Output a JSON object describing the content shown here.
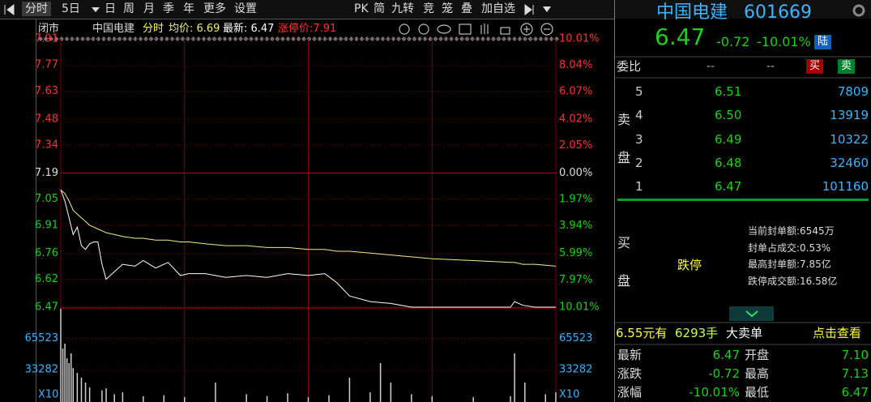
{
  "toolbar": {
    "left": [
      "分时",
      "5日",
      "日",
      "周",
      "月",
      "季",
      "年",
      "更多",
      "设置"
    ],
    "right": [
      "PK",
      "简",
      "九转",
      "竞",
      "笼",
      "叠",
      "加自选"
    ]
  },
  "chart_data": {
    "type": "line",
    "status": "闭市",
    "name": "中国电建",
    "mode": "分时",
    "avg_label": "均价: 6.69",
    "last_label": "最新: 6.47",
    "limit_label": "涨停价:7.91",
    "x": [
      0,
      2,
      4,
      6,
      8,
      10,
      12,
      14,
      16,
      18,
      20,
      22,
      26,
      30,
      36,
      40,
      46,
      52,
      58,
      62,
      70,
      80,
      90,
      100,
      110,
      120,
      128,
      134,
      140,
      150,
      160,
      170,
      180,
      200,
      218,
      220,
      224,
      230,
      240
    ],
    "series": [
      {
        "color": "#ffffff",
        "values": [
          7.1,
          7.04,
          6.95,
          6.86,
          6.9,
          6.8,
          6.78,
          6.81,
          6.82,
          6.82,
          6.7,
          6.62,
          6.66,
          6.7,
          6.69,
          6.72,
          6.68,
          6.71,
          6.64,
          6.65,
          6.65,
          6.63,
          6.64,
          6.63,
          6.65,
          6.64,
          6.65,
          6.6,
          6.53,
          6.5,
          6.49,
          6.47,
          6.47,
          6.47,
          6.47,
          6.5,
          6.48,
          6.47,
          6.47
        ]
      },
      {
        "color": "#f0f080",
        "values": [
          7.1,
          7.08,
          7.04,
          6.99,
          6.97,
          6.95,
          6.93,
          6.91,
          6.9,
          6.89,
          6.88,
          6.87,
          6.86,
          6.85,
          6.84,
          6.84,
          6.83,
          6.83,
          6.82,
          6.82,
          6.81,
          6.8,
          6.8,
          6.79,
          6.79,
          6.78,
          6.78,
          6.77,
          6.77,
          6.76,
          6.75,
          6.74,
          6.73,
          6.72,
          6.71,
          6.71,
          6.7,
          6.7,
          6.69
        ]
      }
    ],
    "xlim": [
      0,
      240
    ],
    "xticks": [
      0,
      60,
      120,
      180,
      240
    ],
    "ylim": [
      6.47,
      7.91
    ],
    "yticks": [
      7.91,
      7.77,
      7.63,
      7.48,
      7.34,
      7.19,
      7.05,
      6.91,
      6.76,
      6.62,
      6.47
    ],
    "y2lim": [
      -10.01,
      10.01
    ],
    "y2ticks": [
      {
        "value": 10.01,
        "label": "10.01%"
      },
      {
        "value": 8.04,
        "label": "8.04%"
      },
      {
        "value": 6.07,
        "label": "6.07%"
      },
      {
        "value": 4.02,
        "label": "4.02%"
      },
      {
        "value": 2.05,
        "label": "2.05%"
      },
      {
        "value": 0,
        "label": "0.00%"
      },
      {
        "value": -1.97,
        "label": "1.97%"
      },
      {
        "value": -3.94,
        "label": "3.94%"
      },
      {
        "value": -5.99,
        "label": "5.99%"
      },
      {
        "value": -7.97,
        "label": "7.97%"
      },
      {
        "value": -10.01,
        "label": "10.01%"
      }
    ],
    "grid": true,
    "volume": {
      "unit": "X10",
      "color": "#d0d0d0",
      "ylim": [
        0,
        96700
      ],
      "yticks": [
        65523,
        33282
      ],
      "x": [
        0,
        1,
        2,
        3,
        4,
        5,
        6,
        8,
        10,
        12,
        14,
        20,
        22,
        26,
        30,
        40,
        50,
        60,
        75,
        90,
        100,
        110,
        120,
        130,
        140,
        150,
        155,
        160,
        170,
        180,
        200,
        218,
        220,
        225,
        235,
        240
      ],
      "values": [
        96000,
        55000,
        60000,
        45000,
        40000,
        50000,
        35000,
        30000,
        25000,
        20000,
        15000,
        12000,
        14000,
        8000,
        10000,
        6000,
        7000,
        5000,
        20000,
        8000,
        6000,
        9000,
        5000,
        7000,
        25000,
        10000,
        40000,
        20000,
        8000,
        6000,
        5000,
        6000,
        50000,
        20000,
        8000,
        10000
      ]
    }
  },
  "quote": {
    "name": "中国电建",
    "code": "601669",
    "price": "6.47",
    "change": "-0.72",
    "pct": "-10.01%",
    "tag": "陆"
  },
  "order_ratio": {
    "label": "委比",
    "values": [
      "--",
      "--"
    ],
    "buy_btn": "买",
    "sell_btn": "卖"
  },
  "asks": {
    "label": [
      "卖",
      "盘"
    ],
    "levels": [
      {
        "level": "5",
        "price": "6.51",
        "volume": "7809"
      },
      {
        "level": "4",
        "price": "6.50",
        "volume": "13919"
      },
      {
        "level": "3",
        "price": "6.49",
        "volume": "10322"
      },
      {
        "level": "2",
        "price": "6.48",
        "volume": "32460"
      },
      {
        "level": "1",
        "price": "6.47",
        "volume": "101160"
      }
    ]
  },
  "bids": {
    "label": [
      "买",
      "盘"
    ],
    "status": "跌停",
    "info": [
      "当前封单额:6545万",
      "封单占成交:0.53%",
      "最高封单额:7.85亿",
      "跌停成交额:16.58亿"
    ]
  },
  "big_order": {
    "amount": "6.55元有",
    "volume": "6293手",
    "type": "大卖单",
    "link": "点击查看"
  },
  "stats": [
    [
      "最新",
      "6.47",
      "开盘",
      "7.10"
    ],
    [
      "涨跌",
      "-0.72",
      "最高",
      "7.13"
    ],
    [
      "涨幅",
      "-10.01%",
      "最低",
      "6.47"
    ]
  ]
}
